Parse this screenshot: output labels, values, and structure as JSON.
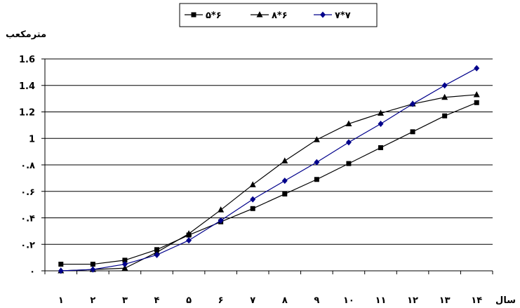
{
  "chart_data": {
    "type": "line",
    "title": "",
    "ylabel": "مترمکعب",
    "xlabel": "سال",
    "ylim": [
      0,
      1.6
    ],
    "yticks": [
      0,
      0.2,
      0.4,
      0.6,
      0.8,
      1,
      1.2,
      1.4,
      1.6
    ],
    "ytick_labels": [
      "۰",
      "۰.۲",
      "۰.۴",
      "۰.۶",
      "۰.۸",
      "1",
      "1.2",
      "1.4",
      "1.6"
    ],
    "x": [
      1,
      2,
      3,
      4,
      5,
      6,
      7,
      8,
      9,
      10,
      11,
      12,
      13,
      14
    ],
    "xtick_labels": [
      "۱",
      "۲",
      "۳",
      "۴",
      "۵",
      "۶",
      "۷",
      "۸",
      "۹",
      "۱۰",
      "۱۱",
      "۱۲",
      "۱۳",
      "۱۴"
    ],
    "grid": "horizontal",
    "legend_position": "top-center",
    "series": [
      {
        "name": "۵*۶",
        "marker": "square",
        "color": "#000000",
        "values": [
          0.05,
          0.05,
          0.08,
          0.16,
          0.27,
          0.37,
          0.47,
          0.58,
          0.69,
          0.81,
          0.93,
          1.05,
          1.17,
          1.27
        ]
      },
      {
        "name": "۸*۶",
        "marker": "triangle",
        "color": "#000000",
        "values": [
          0,
          0.01,
          0.02,
          0.14,
          0.28,
          0.46,
          0.65,
          0.83,
          0.99,
          1.11,
          1.19,
          1.26,
          1.31,
          1.33
        ]
      },
      {
        "name": "۷*۷",
        "marker": "diamond",
        "color": "#00008b",
        "values": [
          0,
          0.01,
          0.05,
          0.12,
          0.23,
          0.38,
          0.54,
          0.68,
          0.82,
          0.97,
          1.11,
          1.26,
          1.4,
          1.53
        ]
      }
    ]
  }
}
